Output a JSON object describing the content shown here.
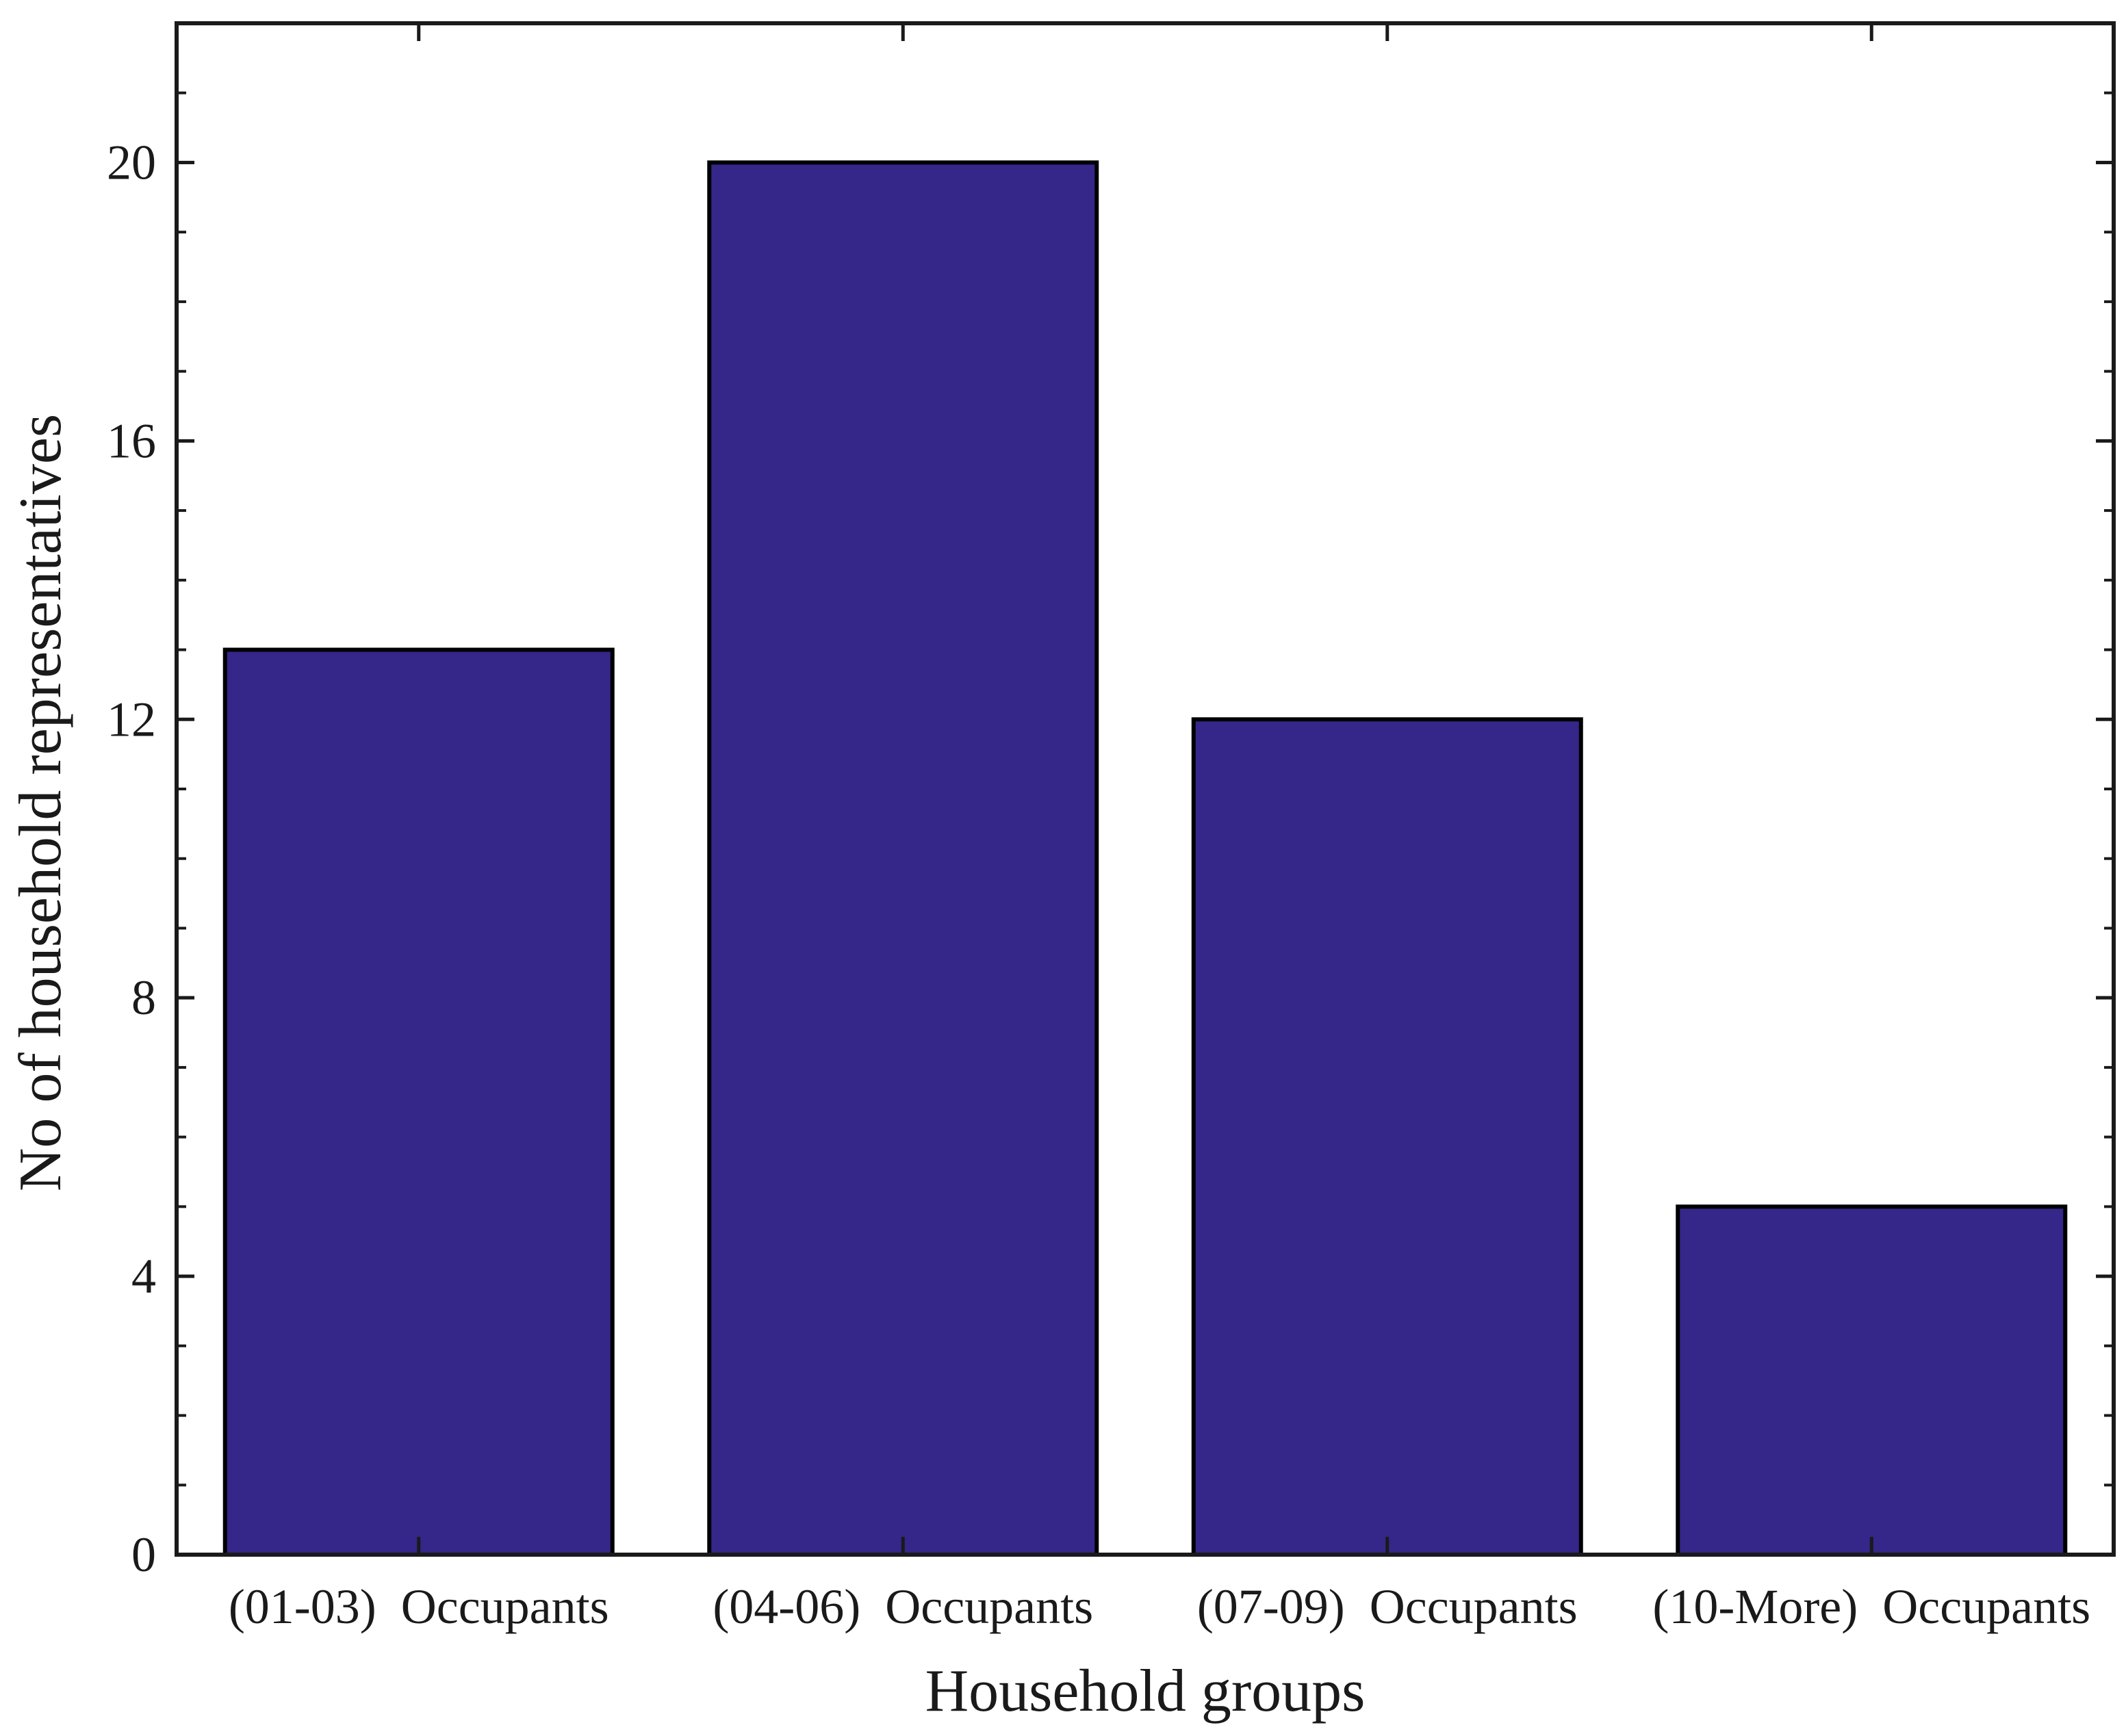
{
  "chart_data": {
    "type": "bar",
    "title": "",
    "xlabel": "Household groups",
    "ylabel": "No of household representatives",
    "categories": [
      "(01-03)  Occupants",
      "(04-06)  Occupants",
      "(07-09)  Occupants",
      "(10-More)  Occupants"
    ],
    "values": [
      13,
      20,
      12,
      5
    ],
    "ylim": [
      0,
      22
    ],
    "yticks": [
      0,
      4,
      8,
      12,
      16,
      20
    ],
    "y_minor_step": 1,
    "grid": false,
    "legend": "none",
    "colors": {
      "bar_fill": "#352689",
      "bar_edge": "#000000",
      "axis": "#1a1a1a"
    }
  }
}
